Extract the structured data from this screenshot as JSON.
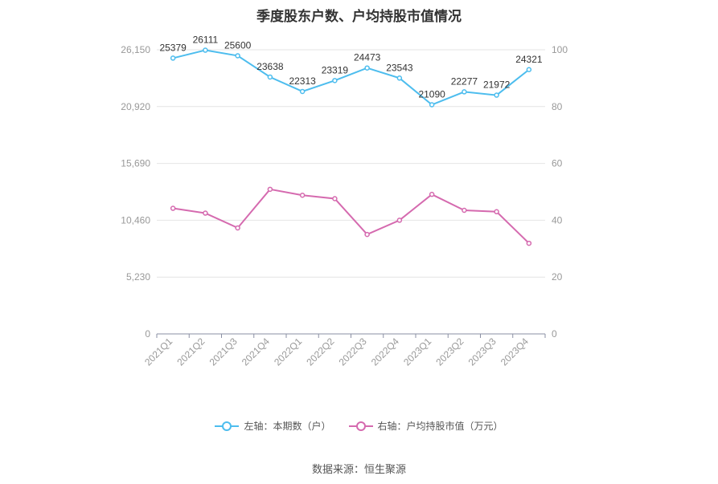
{
  "title": "季度股东户数、户均持股市值情况",
  "source": "数据来源：恒生聚源",
  "colors": {
    "left": "#4dbdee",
    "right": "#d56aaf",
    "grid": "#e4e4e4",
    "axis": "#8a8fa3",
    "tick": "#999999",
    "label": "#333333"
  },
  "legend": [
    {
      "label": "左轴：本期数（户）",
      "color": "#4dbdee"
    },
    {
      "label": "右轴：户均持股市值（万元）",
      "color": "#d56aaf"
    }
  ],
  "chart_data": {
    "type": "line",
    "title": "季度股东户数、户均持股市值情况",
    "categories": [
      "2021Q1",
      "2021Q2",
      "2021Q3",
      "2021Q4",
      "2022Q1",
      "2022Q2",
      "2022Q3",
      "2022Q4",
      "2023Q1",
      "2023Q2",
      "2023Q3",
      "2023Q4"
    ],
    "left_axis": {
      "ticks": [
        "0",
        "5,230",
        "10,460",
        "15,690",
        "20,920",
        "26,150"
      ],
      "range": [
        0,
        26150
      ]
    },
    "right_axis": {
      "ticks": [
        "0",
        "20",
        "40",
        "60",
        "80",
        "100"
      ],
      "range": [
        0,
        100
      ]
    },
    "series": [
      {
        "name": "左轴：本期数（户）",
        "axis": "left",
        "values": [
          25379,
          26111,
          25600,
          23638,
          22313,
          23319,
          24473,
          23543,
          21090,
          22277,
          21972,
          24321
        ],
        "labels": [
          "25379",
          "26111",
          "25600",
          "23638",
          "22313",
          "23319",
          "24473",
          "23543",
          "21090",
          "22277",
          "21972",
          "24321"
        ]
      },
      {
        "name": "右轴：户均持股市值（万元）",
        "axis": "right",
        "values": [
          44.2,
          42.5,
          37.3,
          50.9,
          48.8,
          47.6,
          35.0,
          40.0,
          49.1,
          43.5,
          43.0,
          31.9
        ]
      }
    ],
    "grid": true,
    "legend_position": "bottom"
  }
}
